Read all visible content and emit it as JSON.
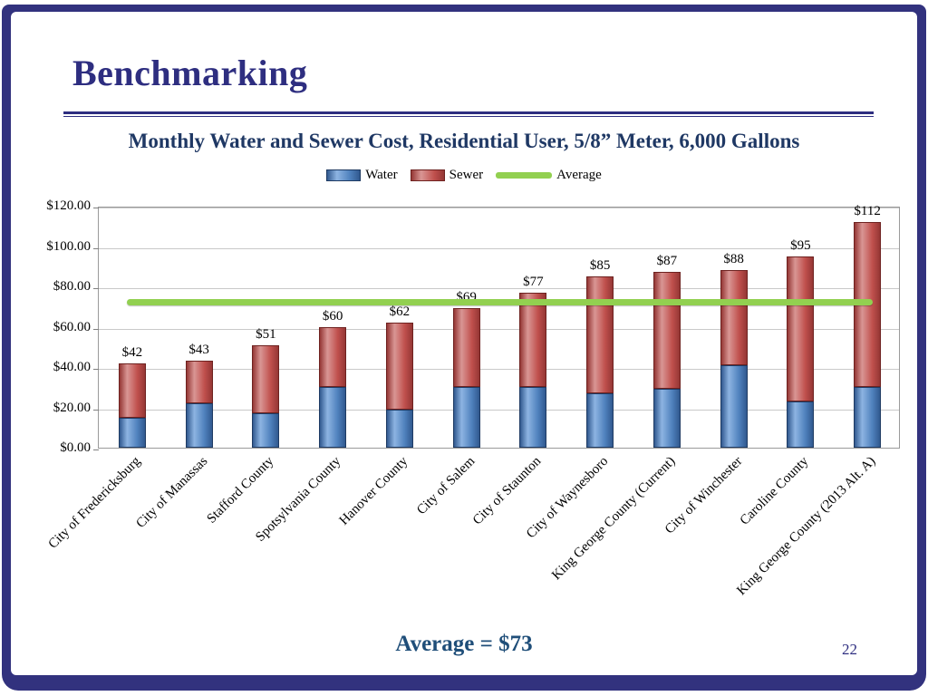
{
  "slide": {
    "title": "Benchmarking",
    "subtitle": "Monthly Water and Sewer Cost, Residential User, 5/8” Meter, 6,000 Gallons",
    "footer_average": "Average = $73",
    "page_number": "22"
  },
  "chart_data": {
    "type": "bar",
    "stacked": true,
    "title": "Monthly Water and Sewer Cost, Residential User, 5/8” Meter, 6,000 Gallons",
    "categories": [
      "City of Fredericksburg",
      "City of Manassas",
      "Stafford County",
      "Spotsylvania County",
      "Hanover County",
      "City of Salem",
      "City of Staunton",
      "City of Waynesboro",
      "King George County (Current)",
      "City of Winchester",
      "Caroline County",
      "King George County (2013 Alt. A)"
    ],
    "series": [
      {
        "name": "Water",
        "color": "#4F81BD",
        "values": [
          15,
          22,
          17,
          30,
          19,
          30,
          30,
          27,
          29,
          41,
          23,
          30
        ]
      },
      {
        "name": "Sewer",
        "color": "#C0504D",
        "values": [
          27,
          21,
          34,
          30,
          43,
          39,
          47,
          58,
          58,
          47,
          72,
          82
        ]
      }
    ],
    "totals": [
      "$42",
      "$43",
      "$51",
      "$60",
      "$62",
      "$69",
      "$77",
      "$85",
      "$87",
      "$88",
      "$95",
      "$112"
    ],
    "average": {
      "name": "Average",
      "value": 73,
      "color": "#92D050"
    },
    "ylim": [
      0,
      120
    ],
    "ytick_step": 20,
    "ytick_labels": [
      "$0.00",
      "$20.00",
      "$40.00",
      "$60.00",
      "$80.00",
      "$100.00",
      "$120.00"
    ],
    "legend": [
      "Water",
      "Sewer",
      "Average"
    ],
    "legend_position": "top",
    "grid": true,
    "xlabel": "",
    "ylabel": ""
  }
}
